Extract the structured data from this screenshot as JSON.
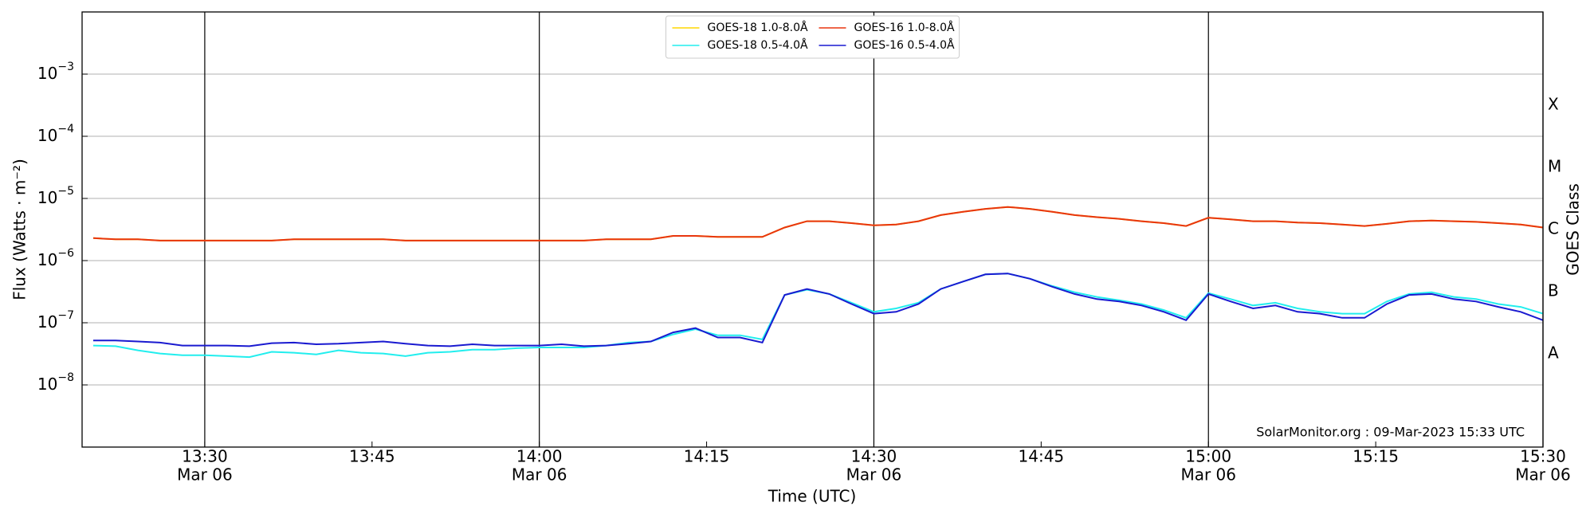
{
  "chart_data": {
    "type": "line",
    "ylabel": "Flux (Watts · m⁻²)",
    "xlabel": "Time (UTC)",
    "y2label": "GOES Class",
    "annotation": "SolarMonitor.org : 09-Mar-2023 15:33 UTC",
    "log_y": true,
    "grid": true,
    "legend_loc": "upper center",
    "xlim": [
      "13:19",
      "15:30"
    ],
    "xticks": [
      {
        "value": "13:30",
        "label": [
          "13:30",
          "Mar 06"
        ]
      },
      "13:45",
      {
        "value": "14:00",
        "label": [
          "14:00",
          "Mar 06"
        ]
      },
      "14:15",
      {
        "value": "14:30",
        "label": [
          "14:30",
          "Mar 06"
        ]
      },
      "14:45",
      {
        "value": "15:00",
        "label": [
          "15:00",
          "Mar 06"
        ]
      },
      "15:15",
      {
        "value": "15:30",
        "label": [
          "15:30",
          "Mar 06"
        ]
      }
    ],
    "ylim": [
      1e-09,
      0.01
    ],
    "yticks": [
      {
        "value": 1e-08,
        "label": [
          "10",
          "−8"
        ]
      },
      {
        "value": 1e-07,
        "label": [
          "10",
          "−7"
        ]
      },
      {
        "value": 1e-06,
        "label": [
          "10",
          "−6"
        ]
      },
      {
        "value": 1e-05,
        "label": [
          "10",
          "−5"
        ]
      },
      {
        "value": 0.0001,
        "label": [
          "10",
          "−4"
        ]
      },
      {
        "value": 0.001,
        "label": [
          "10",
          "−3"
        ]
      }
    ],
    "y2lim": [
      1e-09,
      0.01
    ],
    "y2ticks": [
      {
        "value": 3.16e-08,
        "label": "A"
      },
      {
        "value": 3.16e-07,
        "label": "B"
      },
      {
        "value": 3.16e-06,
        "label": "C"
      },
      {
        "value": 3.16e-05,
        "label": "M"
      },
      {
        "value": 0.000316,
        "label": "X"
      }
    ],
    "x": [
      "13:20",
      "13:22",
      "13:24",
      "13:26",
      "13:28",
      "13:30",
      "13:32",
      "13:34",
      "13:36",
      "13:38",
      "13:40",
      "13:42",
      "13:44",
      "13:46",
      "13:48",
      "13:50",
      "13:52",
      "13:54",
      "13:56",
      "13:58",
      "14:00",
      "14:02",
      "14:04",
      "14:06",
      "14:08",
      "14:10",
      "14:12",
      "14:14",
      "14:16",
      "14:18",
      "14:20",
      "14:22",
      "14:24",
      "14:26",
      "14:28",
      "14:30",
      "14:32",
      "14:34",
      "14:36",
      "14:38",
      "14:40",
      "14:42",
      "14:44",
      "14:46",
      "14:48",
      "14:50",
      "14:52",
      "14:54",
      "14:56",
      "14:58",
      "15:00",
      "15:02",
      "15:04",
      "15:06",
      "15:08",
      "15:10",
      "15:12",
      "15:14",
      "15:16",
      "15:18",
      "15:20",
      "15:22",
      "15:24",
      "15:26",
      "15:28",
      "15:30"
    ],
    "series": [
      {
        "name": "GOES-18 1.0-8.0Å",
        "color": "#ffd700",
        "values": [
          2.3e-06,
          2.2e-06,
          2.2e-06,
          2.1e-06,
          2.1e-06,
          2.1e-06,
          2.1e-06,
          2.1e-06,
          2.1e-06,
          2.2e-06,
          2.2e-06,
          2.2e-06,
          2.2e-06,
          2.2e-06,
          2.1e-06,
          2.1e-06,
          2.1e-06,
          2.1e-06,
          2.1e-06,
          2.1e-06,
          2.1e-06,
          2.1e-06,
          2.1e-06,
          2.2e-06,
          2.2e-06,
          2.2e-06,
          2.5e-06,
          2.5e-06,
          2.4e-06,
          2.4e-06,
          2.4e-06,
          3.4e-06,
          4.3e-06,
          4.3e-06,
          4e-06,
          3.7e-06,
          3.8e-06,
          4.3e-06,
          5.4e-06,
          6.1e-06,
          6.8e-06,
          7.3e-06,
          6.8e-06,
          6.1e-06,
          5.4e-06,
          5e-06,
          4.7e-06,
          4.3e-06,
          4e-06,
          3.6e-06,
          4.9e-06,
          4.6e-06,
          4.3e-06,
          4.3e-06,
          4.1e-06,
          4e-06,
          3.8e-06,
          3.6e-06,
          3.9e-06,
          4.3e-06,
          4.4e-06,
          4.3e-06,
          4.2e-06,
          4e-06,
          3.8e-06,
          3.4e-06
        ]
      },
      {
        "name": "GOES-18 0.5-4.0Å",
        "color": "#22eeee",
        "values": [
          4.3e-08,
          4.2e-08,
          3.6e-08,
          3.2e-08,
          3e-08,
          3e-08,
          2.9e-08,
          2.8e-08,
          3.4e-08,
          3.3e-08,
          3.1e-08,
          3.6e-08,
          3.3e-08,
          3.2e-08,
          2.9e-08,
          3.3e-08,
          3.4e-08,
          3.7e-08,
          3.7e-08,
          3.9e-08,
          4e-08,
          4e-08,
          4e-08,
          4.3e-08,
          4.8e-08,
          5e-08,
          6.5e-08,
          7.9e-08,
          6.3e-08,
          6.3e-08,
          5.4e-08,
          2.8e-07,
          3.4e-07,
          2.9e-07,
          2.1e-07,
          1.5e-07,
          1.7e-07,
          2.1e-07,
          3.5e-07,
          4.6e-07,
          6e-07,
          6.2e-07,
          5.1e-07,
          3.9e-07,
          3.1e-07,
          2.6e-07,
          2.3e-07,
          2e-07,
          1.6e-07,
          1.2e-07,
          3e-07,
          2.4e-07,
          1.9e-07,
          2.1e-07,
          1.7e-07,
          1.5e-07,
          1.4e-07,
          1.4e-07,
          2.2e-07,
          2.9e-07,
          3.1e-07,
          2.6e-07,
          2.4e-07,
          2e-07,
          1.8e-07,
          1.4e-07
        ]
      },
      {
        "name": "GOES-16 1.0-8.0Å",
        "color": "#e8350f",
        "values": [
          2.3e-06,
          2.2e-06,
          2.2e-06,
          2.1e-06,
          2.1e-06,
          2.1e-06,
          2.1e-06,
          2.1e-06,
          2.1e-06,
          2.2e-06,
          2.2e-06,
          2.2e-06,
          2.2e-06,
          2.2e-06,
          2.1e-06,
          2.1e-06,
          2.1e-06,
          2.1e-06,
          2.1e-06,
          2.1e-06,
          2.1e-06,
          2.1e-06,
          2.1e-06,
          2.2e-06,
          2.2e-06,
          2.2e-06,
          2.5e-06,
          2.5e-06,
          2.4e-06,
          2.4e-06,
          2.4e-06,
          3.4e-06,
          4.3e-06,
          4.3e-06,
          4e-06,
          3.7e-06,
          3.8e-06,
          4.3e-06,
          5.4e-06,
          6.1e-06,
          6.8e-06,
          7.3e-06,
          6.8e-06,
          6.1e-06,
          5.4e-06,
          5e-06,
          4.7e-06,
          4.3e-06,
          4e-06,
          3.6e-06,
          4.9e-06,
          4.6e-06,
          4.3e-06,
          4.3e-06,
          4.1e-06,
          4e-06,
          3.8e-06,
          3.6e-06,
          3.9e-06,
          4.3e-06,
          4.4e-06,
          4.3e-06,
          4.2e-06,
          4e-06,
          3.8e-06,
          3.4e-06
        ]
      },
      {
        "name": "GOES-16 0.5-4.0Å",
        "color": "#1a1ad0",
        "values": [
          5.2e-08,
          5.2e-08,
          5e-08,
          4.8e-08,
          4.3e-08,
          4.3e-08,
          4.3e-08,
          4.2e-08,
          4.7e-08,
          4.8e-08,
          4.5e-08,
          4.6e-08,
          4.8e-08,
          5e-08,
          4.6e-08,
          4.3e-08,
          4.2e-08,
          4.5e-08,
          4.3e-08,
          4.3e-08,
          4.3e-08,
          4.5e-08,
          4.2e-08,
          4.3e-08,
          4.6e-08,
          5e-08,
          7e-08,
          8.2e-08,
          5.8e-08,
          5.8e-08,
          4.8e-08,
          2.8e-07,
          3.5e-07,
          2.9e-07,
          2e-07,
          1.4e-07,
          1.5e-07,
          2e-07,
          3.5e-07,
          4.6e-07,
          6e-07,
          6.2e-07,
          5.1e-07,
          3.8e-07,
          2.9e-07,
          2.4e-07,
          2.2e-07,
          1.9e-07,
          1.5e-07,
          1.1e-07,
          2.9e-07,
          2.2e-07,
          1.7e-07,
          1.9e-07,
          1.5e-07,
          1.4e-07,
          1.2e-07,
          1.2e-07,
          2e-07,
          2.8e-07,
          2.9e-07,
          2.4e-07,
          2.2e-07,
          1.8e-07,
          1.5e-07,
          1.1e-07
        ]
      }
    ]
  }
}
